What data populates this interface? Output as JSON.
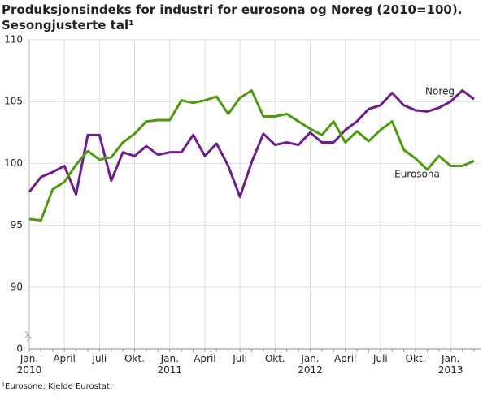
{
  "chart_data": {
    "type": "line",
    "title": "Produksjonsindeks for industri for eurosona og Noreg (2010=100).",
    "subtitle": "Sesongjusterte tal¹",
    "footnote": "¹Eurosone: Kjelde Eurostat.",
    "categories": [
      "Jan.\n2010",
      null,
      null,
      "April",
      null,
      null,
      "Juli",
      null,
      null,
      "Okt.",
      null,
      null,
      "Jan.\n2011",
      null,
      null,
      "April",
      null,
      null,
      "Juli",
      null,
      null,
      "Okt.",
      null,
      null,
      "Jan.\n2012",
      null,
      null,
      "April",
      null,
      null,
      "Juli",
      null,
      null,
      "Okt.",
      null,
      null,
      "Jan.\n2013",
      null,
      null
    ],
    "series": [
      {
        "name": "Noreg",
        "color": "#6e1e8c",
        "values": [
          97.7,
          98.9,
          99.3,
          99.8,
          97.5,
          102.3,
          102.3,
          98.6,
          100.9,
          100.6,
          101.4,
          100.7,
          100.9,
          100.9,
          102.3,
          100.6,
          101.6,
          99.8,
          97.3,
          100.1,
          102.4,
          101.5,
          101.7,
          101.5,
          102.5,
          101.7,
          101.7,
          102.7,
          103.4,
          104.4,
          104.7,
          105.7,
          104.7,
          104.3,
          104.2,
          104.5,
          105.0,
          105.9,
          105.2
        ]
      },
      {
        "name": "Eurosona",
        "color": "#4e9a0e",
        "values": [
          95.5,
          95.4,
          97.9,
          98.5,
          99.9,
          101.0,
          100.3,
          100.5,
          101.7,
          102.4,
          103.4,
          103.5,
          103.5,
          105.1,
          104.9,
          105.1,
          105.4,
          104.0,
          105.3,
          105.9,
          103.8,
          103.8,
          104.0,
          103.4,
          102.8,
          102.3,
          103.4,
          101.7,
          102.6,
          101.8,
          102.7,
          103.4,
          101.1,
          100.4,
          99.5,
          100.6,
          99.8,
          99.8,
          100.2
        ]
      }
    ],
    "ylim": [
      0,
      110
    ],
    "yticks": [
      0,
      90,
      95,
      100,
      105,
      110
    ],
    "axis_break": [
      0,
      85
    ],
    "grid": true
  }
}
